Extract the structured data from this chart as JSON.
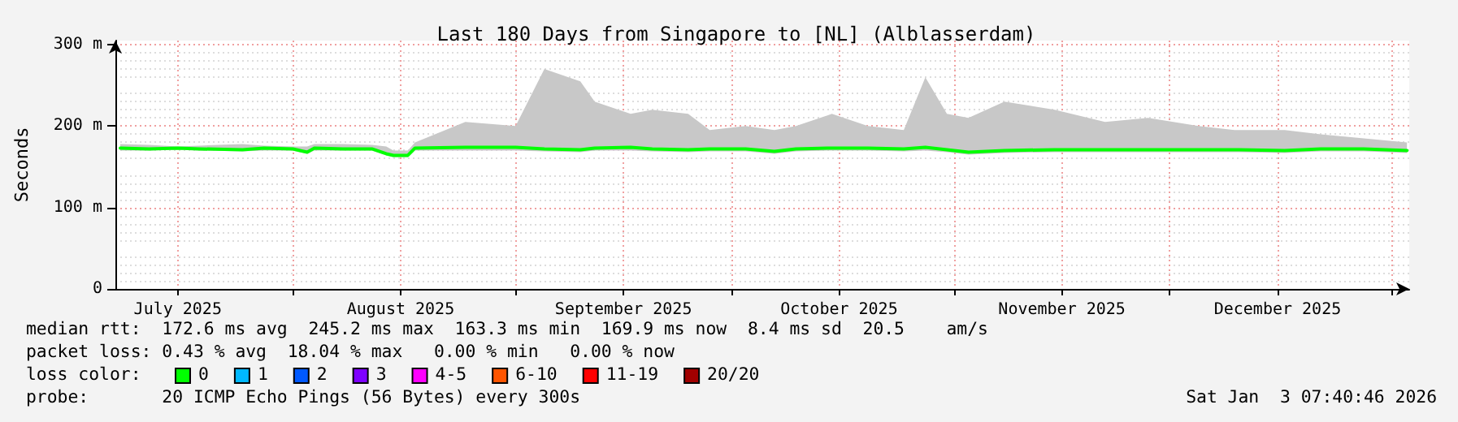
{
  "chart_data": {
    "type": "line",
    "title": "Last 180 Days from Singapore to [NL] (Alblasserdam)",
    "ylabel": "Seconds",
    "x": [
      "2025-07-08",
      "2025-07-12",
      "2025-07-16",
      "2025-07-19",
      "2025-07-25",
      "2025-07-28",
      "2025-08-01",
      "2025-08-03",
      "2025-08-04",
      "2025-08-08",
      "2025-08-12",
      "2025-08-14",
      "2025-08-15",
      "2025-08-17",
      "2025-08-18",
      "2025-08-25",
      "2025-09-01",
      "2025-09-05",
      "2025-09-10",
      "2025-09-12",
      "2025-09-17",
      "2025-09-20",
      "2025-09-25",
      "2025-09-28",
      "2025-10-03",
      "2025-10-07",
      "2025-10-10",
      "2025-10-15",
      "2025-10-20",
      "2025-10-25",
      "2025-10-28",
      "2025-10-31",
      "2025-11-03",
      "2025-11-08",
      "2025-11-15",
      "2025-11-22",
      "2025-11-28",
      "2025-12-05",
      "2025-12-10",
      "2025-12-17",
      "2025-12-22",
      "2025-12-28",
      "2026-01-03"
    ],
    "series": [
      {
        "color": "#00ff00",
        "values": [
          173,
          172,
          173,
          172,
          171,
          173,
          172,
          168,
          173,
          172,
          172,
          166,
          164,
          164,
          173,
          174,
          174,
          172,
          171,
          173,
          174,
          172,
          171,
          172,
          172,
          169,
          172,
          173,
          173,
          172,
          174,
          171,
          168,
          170,
          171,
          171,
          171,
          171,
          171,
          170,
          172,
          172,
          170
        ],
        "lower": [
          170,
          170,
          171,
          170,
          169,
          170,
          170,
          166,
          170,
          170,
          170,
          164,
          162,
          162,
          170,
          170,
          170,
          169,
          168,
          170,
          170,
          169,
          168,
          169,
          169,
          166,
          169,
          170,
          170,
          169,
          170,
          168,
          165,
          167,
          168,
          168,
          168,
          168,
          168,
          167,
          169,
          169,
          167
        ],
        "upper": [
          178,
          177,
          175,
          176,
          178,
          176,
          175,
          175,
          178,
          178,
          177,
          175,
          170,
          170,
          180,
          205,
          200,
          270,
          255,
          230,
          215,
          220,
          215,
          195,
          200,
          195,
          200,
          215,
          200,
          195,
          260,
          215,
          210,
          230,
          220,
          205,
          210,
          200,
          195,
          195,
          190,
          185,
          180
        ]
      }
    ],
    "xlim": [
      "2025-07-07T07:40",
      "2026-01-03T07:40"
    ],
    "xticks": [
      {
        "value": "2025-08-01",
        "label": null
      },
      {
        "value": "2025-09-01",
        "label": null
      },
      {
        "value": "2025-10-01",
        "label": null
      },
      {
        "value": "2025-11-01",
        "label": null
      },
      {
        "value": "2025-12-01",
        "label": null
      },
      {
        "value": "2026-01-01",
        "label": null
      },
      {
        "value": "2025-07-16",
        "label": "July 2025"
      },
      {
        "value": "2025-08-16",
        "label": "August 2025"
      },
      {
        "value": "2025-09-16",
        "label": "September 2025"
      },
      {
        "value": "2025-10-16",
        "label": "October 2025"
      },
      {
        "value": "2025-11-16",
        "label": "November 2025"
      },
      {
        "value": "2025-12-16",
        "label": "December 2025"
      }
    ],
    "ylim": [
      0,
      305
    ],
    "yticks": [
      {
        "value": 0,
        "label": "0"
      },
      {
        "value": 100,
        "label": "100 m"
      },
      {
        "value": 200,
        "label": "200 m"
      },
      {
        "value": 300,
        "label": "300 m"
      }
    ],
    "grid": true,
    "marker": "none",
    "annotations": [
      "median rtt:  172.6 ms avg  245.2 ms max  163.3 ms min  169.9 ms now  8.4 ms sd  20.5    am/s",
      "packet loss: 0.43 % avg  18.04 % max   0.00 % min   0.00 % now",
      "loss color: 0 1 2 3 4-5 6-10 11-19 20/20",
      "probe:       20 ICMP Echo Pings (56 Bytes) every 300s",
      "Sat Jan  3 07:40:46 2026"
    ]
  }
}
